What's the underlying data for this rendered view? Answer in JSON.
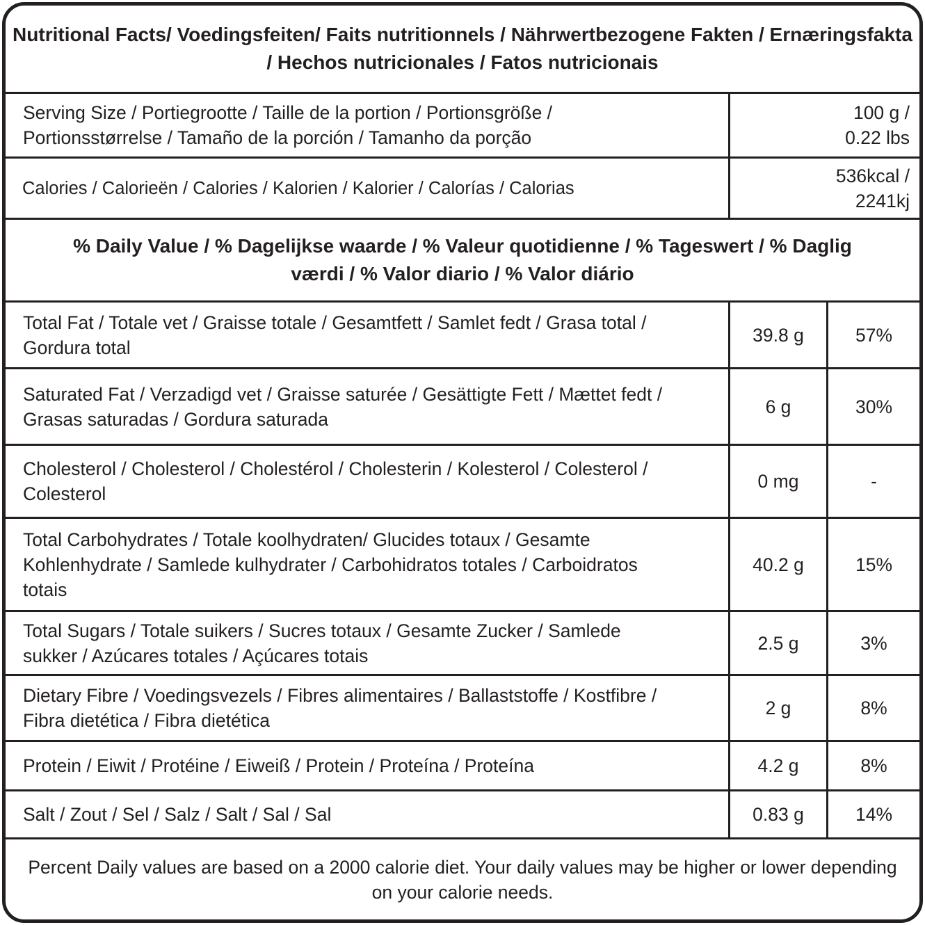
{
  "title": "Nutritional Facts/ Voedingsfeiten/ Faits nutritionnels / Nährwertbezogene Fakten / Ernæringsfakta / Hechos nutricionales / Fatos nutricionais",
  "serving": {
    "label": "Serving Size / Portiegrootte / Taille de la portion / Portionsgröße / Portionsstørrelse / Tamaño de la porción / Tamanho da porção",
    "value": "100 g / 0.22 lbs"
  },
  "calories": {
    "label": "Calories / Calorieën / Calories / Kalorien / Kalorier / Calorías / Calorias",
    "value": "536kcal / 2241kj"
  },
  "daily_value_header": "% Daily Value / % Dagelijkse waarde / % Valeur quotidienne / % Tageswert / % Daglig værdi / % Valor diario / % Valor diário",
  "nutrients": [
    {
      "label": "Total Fat / Totale vet / Graisse totale / Gesamtfett / Samlet fedt / Grasa total / Gordura total",
      "amount": "39.8 g",
      "dv": "57%"
    },
    {
      "label": "Saturated Fat / Verzadigd vet / Graisse saturée / Gesättigte Fett / Mættet fedt / Grasas saturadas / Gordura saturada",
      "amount": "6 g",
      "dv": "30%"
    },
    {
      "label": "Cholesterol / Cholesterol  / Cholestérol / Cholesterin /  Kolesterol / Colesterol / Colesterol",
      "amount": "0 mg",
      "dv": "-"
    },
    {
      "label": "Total Carbohydrates / Totale koolhydraten/ Glucides totaux / Gesamte Kohlenhydrate / Samlede kulhydrater / Carbohidratos totales / Carboidratos totais",
      "amount": "40.2 g",
      "dv": "15%"
    },
    {
      "label": "Total Sugars / Totale suikers / Sucres totaux / Gesamte Zucker / Samlede sukker / Azúcares totales / Açúcares totais",
      "amount": "2.5 g",
      "dv": "3%"
    },
    {
      "label": "Dietary Fibre / Voedingsvezels / Fibres alimentaires / Ballaststoffe / Kostfibre / Fibra dietética / Fibra dietética",
      "amount": "2 g",
      "dv": "8%"
    },
    {
      "label": "Protein / Eiwit / Protéine / Eiweiß / Protein / Proteína / Proteína",
      "amount": "4.2 g",
      "dv": "8%"
    },
    {
      "label": "Salt / Zout / Sel / Salz / Salt / Sal / Sal",
      "amount": "0.83 g",
      "dv": "14%"
    }
  ],
  "footnote": "Percent Daily values are based on a 2000 calorie diet. Your daily values may be higher or lower depending on your calorie needs."
}
